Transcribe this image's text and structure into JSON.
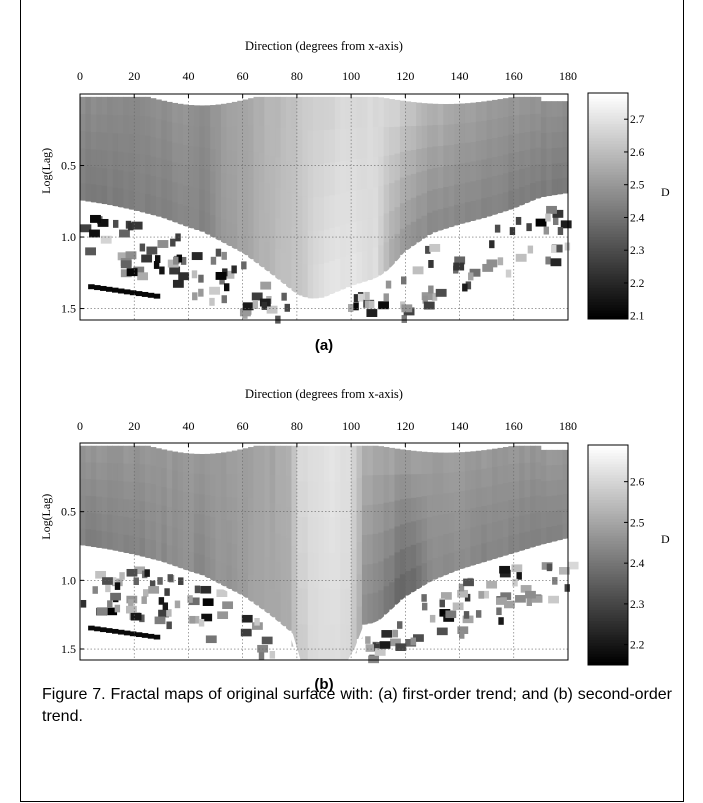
{
  "caption": "Figure 7. Fractal maps of original surface with: (a) first-order trend; and (b) second-order trend.",
  "chart_data": [
    {
      "type": "heatmap",
      "panel_label": "(a)",
      "title": "Direction (degrees from x-axis)",
      "xlabel": "",
      "ylabel": "Log(Lag)",
      "xlim": [
        0,
        180
      ],
      "ylim": [
        0,
        1.58
      ],
      "x_ticks": [
        "0",
        "20",
        "40",
        "60",
        "80",
        "100",
        "120",
        "140",
        "160",
        "180"
      ],
      "y_ticks": [
        "0.5",
        "1.0",
        "1.5"
      ],
      "colorbar": {
        "label": "D",
        "range": [
          2.09,
          2.78
        ],
        "ticks": [
          "2.7",
          "2.6",
          "2.5",
          "2.4",
          "2.3",
          "2.2",
          "2.1"
        ],
        "colormap": "gray"
      },
      "grid": true,
      "surface_profile": {
        "directions": [
          0,
          10,
          20,
          30,
          40,
          45,
          50,
          60,
          70,
          80,
          85,
          90,
          100,
          110,
          115,
          120,
          130,
          140,
          150,
          160,
          170,
          180
        ],
        "lag_limit": [
          0.74,
          0.77,
          0.81,
          0.86,
          0.93,
          0.96,
          1.01,
          1.11,
          1.25,
          1.4,
          1.43,
          1.42,
          1.34,
          1.28,
          1.21,
          1.1,
          0.97,
          0.91,
          0.86,
          0.8,
          0.72,
          0.69
        ],
        "D_top": [
          2.47,
          2.47,
          2.47,
          2.48,
          2.49,
          2.47,
          2.5,
          2.54,
          2.58,
          2.62,
          2.64,
          2.66,
          2.68,
          2.68,
          2.67,
          2.64,
          2.58,
          2.54,
          2.51,
          2.5,
          2.49,
          2.48
        ],
        "D_bottom": [
          2.42,
          2.42,
          2.43,
          2.44,
          2.46,
          2.44,
          2.48,
          2.53,
          2.58,
          2.62,
          2.66,
          2.69,
          2.72,
          2.68,
          2.55,
          2.48,
          2.46,
          2.45,
          2.44,
          2.43,
          2.42,
          2.42
        ]
      }
    },
    {
      "type": "heatmap",
      "panel_label": "(b)",
      "title": "Direction (degrees from x-axis)",
      "xlabel": "",
      "ylabel": "Log(Lag)",
      "xlim": [
        0,
        180
      ],
      "ylim": [
        0,
        1.58
      ],
      "x_ticks": [
        "0",
        "20",
        "40",
        "60",
        "80",
        "100",
        "120",
        "140",
        "160",
        "180"
      ],
      "y_ticks": [
        "0.5",
        "1.0",
        "1.5"
      ],
      "colorbar": {
        "label": "D",
        "range": [
          2.15,
          2.69
        ],
        "ticks": [
          "2.6",
          "2.5",
          "2.4",
          "2.3",
          "2.2"
        ],
        "colormap": "gray"
      },
      "grid": true,
      "surface_profile": {
        "directions": [
          0,
          10,
          20,
          30,
          40,
          45,
          50,
          60,
          70,
          78,
          80,
          85,
          90,
          100,
          105,
          110,
          120,
          130,
          140,
          150,
          160,
          170,
          180
        ],
        "lag_limit": [
          0.74,
          0.77,
          0.81,
          0.86,
          0.93,
          0.96,
          1.01,
          1.11,
          1.25,
          1.38,
          1.58,
          1.58,
          1.58,
          1.58,
          1.32,
          1.3,
          1.12,
          1.0,
          0.92,
          0.86,
          0.8,
          0.74,
          0.69
        ],
        "D_top": [
          2.47,
          2.47,
          2.47,
          2.47,
          2.48,
          2.47,
          2.48,
          2.49,
          2.5,
          2.52,
          2.6,
          2.62,
          2.64,
          2.62,
          2.52,
          2.51,
          2.5,
          2.49,
          2.48,
          2.48,
          2.47,
          2.47,
          2.47
        ],
        "D_bottom": [
          2.42,
          2.42,
          2.43,
          2.44,
          2.45,
          2.44,
          2.46,
          2.48,
          2.5,
          2.52,
          2.58,
          2.6,
          2.62,
          2.6,
          2.45,
          2.42,
          2.35,
          2.44,
          2.44,
          2.43,
          2.43,
          2.42,
          2.42
        ]
      }
    }
  ]
}
